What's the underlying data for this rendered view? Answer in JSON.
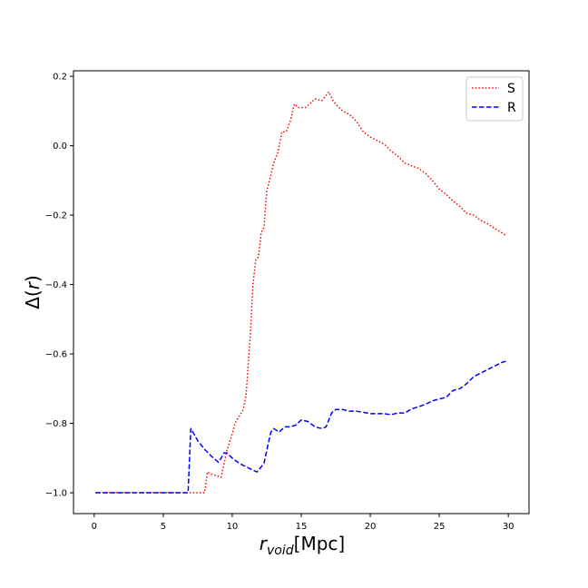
{
  "chart_data": {
    "type": "line",
    "title": "",
    "xlabel": {
      "main": "r",
      "sub": "void",
      "unit": "[Mpc]"
    },
    "ylabel": {
      "prefix": "Δ(",
      "var": "r",
      "suffix": ")"
    },
    "xlim": [
      -1.5,
      31.5
    ],
    "ylim": [
      -1.06,
      0.216
    ],
    "x_ticks": [
      0,
      5,
      10,
      15,
      20,
      25,
      30
    ],
    "x_tick_labels": [
      "0",
      "5",
      "10",
      "15",
      "20",
      "25",
      "30"
    ],
    "y_ticks": [
      -1.0,
      -0.8,
      -0.6,
      -0.4,
      -0.2,
      0.0,
      0.2
    ],
    "y_tick_labels": [
      "−1.0",
      "−0.8",
      "−0.6",
      "−0.4",
      "−0.2",
      "0.0",
      "0.2"
    ],
    "grid": false,
    "legend_position": "top-right",
    "series": [
      {
        "name": "S",
        "color": "#ff0000",
        "linestyle": "dotted",
        "x": [
          0.1,
          6.0,
          8.0,
          8.2,
          8.4,
          8.8,
          9.2,
          9.6,
          10.0,
          10.2,
          10.5,
          10.8,
          11.0,
          11.3,
          11.5,
          11.7,
          11.9,
          12.1,
          12.3,
          12.5,
          12.7,
          13.0,
          13.3,
          13.6,
          13.9,
          14.2,
          14.5,
          14.8,
          15.0,
          15.3,
          15.6,
          16.0,
          16.5,
          17.0,
          17.3,
          17.6,
          18.0,
          18.5,
          19.0,
          19.5,
          20.0,
          20.5,
          21.0,
          21.5,
          22.0,
          22.5,
          23.0,
          23.5,
          24.0,
          24.5,
          25.0,
          25.5,
          26.0,
          26.5,
          27.0,
          27.5,
          28.0,
          28.5,
          29.0,
          29.5,
          29.9
        ],
        "y": [
          -1.0,
          -1.0,
          -1.0,
          -0.94,
          -0.945,
          -0.95,
          -0.955,
          -0.88,
          -0.83,
          -0.8,
          -0.78,
          -0.76,
          -0.72,
          -0.55,
          -0.4,
          -0.33,
          -0.32,
          -0.25,
          -0.235,
          -0.13,
          -0.1,
          -0.05,
          -0.02,
          0.04,
          0.04,
          0.07,
          0.12,
          0.11,
          0.11,
          0.11,
          0.12,
          0.135,
          0.13,
          0.155,
          0.13,
          0.115,
          0.1,
          0.09,
          0.07,
          0.04,
          0.025,
          0.015,
          0.005,
          -0.015,
          -0.03,
          -0.05,
          -0.058,
          -0.065,
          -0.08,
          -0.1,
          -0.125,
          -0.14,
          -0.16,
          -0.175,
          -0.195,
          -0.2,
          -0.215,
          -0.225,
          -0.238,
          -0.25,
          -0.26
        ]
      },
      {
        "name": "R",
        "color": "#0000ff",
        "linestyle": "dashed",
        "x": [
          0.1,
          3.0,
          6.5,
          6.8,
          7.0,
          7.5,
          8.0,
          8.5,
          9.0,
          9.2,
          9.4,
          9.6,
          10.0,
          10.5,
          11.0,
          11.5,
          11.8,
          12.0,
          12.3,
          12.6,
          12.8,
          13.0,
          13.4,
          13.8,
          14.2,
          14.6,
          15.0,
          15.5,
          16.0,
          16.5,
          16.8,
          17.0,
          17.2,
          17.5,
          18.0,
          18.5,
          19.0,
          19.5,
          20.0,
          20.5,
          21.0,
          21.5,
          22.0,
          22.5,
          23.0,
          23.5,
          24.0,
          24.5,
          25.0,
          25.5,
          26.0,
          26.5,
          27.0,
          27.5,
          28.0,
          28.5,
          29.0,
          29.5,
          29.9
        ],
        "y": [
          -1.0,
          -1.0,
          -1.0,
          -1.0,
          -0.815,
          -0.85,
          -0.875,
          -0.895,
          -0.912,
          -0.9,
          -0.885,
          -0.885,
          -0.9,
          -0.915,
          -0.925,
          -0.935,
          -0.94,
          -0.93,
          -0.915,
          -0.86,
          -0.825,
          -0.815,
          -0.825,
          -0.81,
          -0.81,
          -0.805,
          -0.79,
          -0.795,
          -0.81,
          -0.815,
          -0.81,
          -0.79,
          -0.77,
          -0.76,
          -0.76,
          -0.765,
          -0.765,
          -0.768,
          -0.772,
          -0.772,
          -0.772,
          -0.775,
          -0.77,
          -0.77,
          -0.758,
          -0.752,
          -0.745,
          -0.735,
          -0.73,
          -0.725,
          -0.705,
          -0.7,
          -0.685,
          -0.665,
          -0.655,
          -0.645,
          -0.635,
          -0.625,
          -0.62
        ]
      }
    ]
  }
}
